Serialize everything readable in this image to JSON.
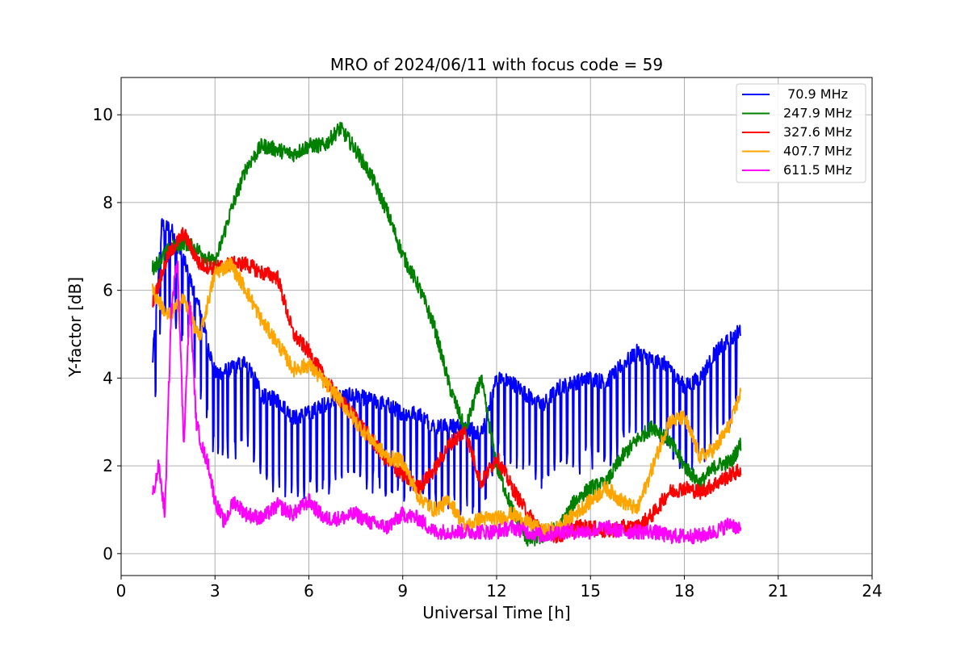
{
  "chart_data": {
    "type": "line",
    "title": "MRO of 2024/06/11 with focus code = 59",
    "xlabel": "Universal Time [h]",
    "ylabel": "Y-factor [dB]",
    "xlim": [
      0,
      24
    ],
    "ylim": [
      -0.5,
      10.85
    ],
    "xticks": [
      0,
      3,
      6,
      9,
      12,
      15,
      18,
      21,
      24
    ],
    "yticks": [
      0,
      2,
      4,
      6,
      8,
      10
    ],
    "grid": true,
    "legend": "top-right",
    "series": [
      {
        "name": " 70.9 MHz",
        "color": "#0000ff",
        "x": [
          1.0,
          1.3,
          1.6,
          2.0,
          2.5,
          3.0,
          3.5,
          4.0,
          4.5,
          5.0,
          5.5,
          6.0,
          6.5,
          7.0,
          7.5,
          8.0,
          8.5,
          9.0,
          9.5,
          10.0,
          10.5,
          11.0,
          11.5,
          12.0,
          12.5,
          13.0,
          13.5,
          14.0,
          14.5,
          15.0,
          15.5,
          16.0,
          16.5,
          17.0,
          17.5,
          18.0,
          18.5,
          19.0,
          19.5,
          19.8
        ],
        "y": [
          4.3,
          7.5,
          7.4,
          6.7,
          5.6,
          4.1,
          4.2,
          4.4,
          3.6,
          3.5,
          3.1,
          3.2,
          3.4,
          3.6,
          3.6,
          3.5,
          3.4,
          3.2,
          3.2,
          2.9,
          2.9,
          2.9,
          2.7,
          4.0,
          3.9,
          3.6,
          3.4,
          3.8,
          3.9,
          4.0,
          3.9,
          4.3,
          4.6,
          4.4,
          4.3,
          3.8,
          4.0,
          4.6,
          4.9,
          5.1
        ],
        "spikes": [
          1.1,
          1.25,
          1.4,
          1.55,
          1.75,
          1.95,
          2.15,
          2.35,
          2.55,
          2.75,
          2.95,
          3.1,
          3.25,
          3.4,
          3.65,
          3.85,
          4.05,
          4.25,
          4.45,
          4.65,
          4.85,
          5.05,
          5.25,
          5.45,
          5.65,
          5.85,
          6.05,
          6.25,
          6.45,
          6.65,
          6.85,
          7.05,
          7.25,
          7.45,
          7.65,
          7.85,
          8.05,
          8.25,
          8.45,
          8.65,
          8.85,
          9.05,
          9.25,
          9.45,
          9.65,
          9.85,
          10.05,
          10.25,
          10.45,
          10.65,
          10.85,
          11.05,
          11.25,
          11.45,
          11.65,
          11.85,
          12.05,
          12.25,
          12.45,
          12.65,
          12.85,
          13.05,
          13.25,
          13.45,
          13.65,
          13.85,
          14.05,
          14.25,
          14.45,
          14.65,
          14.85,
          15.05,
          15.25,
          15.45,
          15.65,
          15.85,
          16.05,
          16.25,
          16.45,
          16.65,
          16.85,
          17.05,
          17.25,
          17.45,
          17.65,
          17.85,
          18.05,
          18.25,
          18.45,
          18.65,
          18.85,
          19.05,
          19.25,
          19.45,
          19.65
        ]
      },
      {
        "name": "247.9 MHz",
        "color": "#008000",
        "x": [
          1.0,
          1.5,
          2.0,
          2.5,
          3.0,
          3.5,
          4.0,
          4.5,
          5.0,
          5.5,
          6.0,
          6.5,
          7.0,
          7.5,
          8.0,
          8.5,
          9.0,
          9.5,
          10.0,
          10.5,
          11.0,
          11.5,
          12.0,
          12.5,
          13.0,
          13.5,
          14.0,
          14.5,
          15.0,
          15.5,
          16.0,
          16.5,
          17.0,
          17.5,
          18.0,
          18.5,
          19.0,
          19.5,
          19.8
        ],
        "y": [
          6.5,
          6.9,
          7.1,
          6.9,
          6.6,
          7.8,
          8.8,
          9.3,
          9.2,
          9.1,
          9.3,
          9.3,
          9.7,
          9.2,
          8.6,
          7.8,
          6.8,
          6.1,
          5.2,
          3.8,
          2.8,
          4.0,
          2.0,
          1.0,
          0.3,
          0.4,
          0.6,
          1.2,
          1.5,
          1.6,
          2.2,
          2.6,
          2.9,
          2.6,
          2.0,
          1.6,
          2.0,
          2.1,
          2.5
        ]
      },
      {
        "name": "327.6 MHz",
        "color": "#ff0000",
        "x": [
          1.0,
          1.5,
          2.0,
          2.5,
          3.0,
          3.5,
          4.0,
          4.5,
          5.0,
          5.5,
          6.0,
          6.5,
          7.0,
          7.5,
          8.0,
          8.5,
          9.0,
          9.5,
          10.0,
          10.5,
          11.0,
          11.5,
          12.0,
          12.5,
          13.0,
          13.5,
          14.0,
          14.5,
          15.0,
          15.5,
          16.0,
          16.5,
          17.0,
          17.5,
          18.0,
          18.5,
          19.0,
          19.5,
          19.8
        ],
        "y": [
          5.7,
          6.8,
          7.3,
          6.6,
          6.5,
          6.6,
          6.6,
          6.4,
          6.3,
          5.0,
          4.6,
          4.0,
          3.5,
          3.1,
          2.6,
          2.1,
          1.8,
          1.5,
          1.9,
          2.5,
          2.8,
          1.6,
          2.2,
          1.5,
          0.9,
          0.5,
          0.4,
          0.6,
          0.6,
          0.5,
          0.6,
          0.6,
          0.9,
          1.4,
          1.5,
          1.4,
          1.6,
          1.8,
          1.9
        ]
      },
      {
        "name": "407.7 MHz",
        "color": "#ffa500",
        "x": [
          1.0,
          1.5,
          2.0,
          2.5,
          3.0,
          3.5,
          4.0,
          4.5,
          5.0,
          5.5,
          6.0,
          6.5,
          7.0,
          7.5,
          8.0,
          8.5,
          9.0,
          9.5,
          10.0,
          10.5,
          11.0,
          11.5,
          12.0,
          12.5,
          13.0,
          13.5,
          14.0,
          14.5,
          15.0,
          15.5,
          16.0,
          16.5,
          17.0,
          17.5,
          18.0,
          18.5,
          19.0,
          19.5,
          19.8
        ],
        "y": [
          6.0,
          5.4,
          5.8,
          4.9,
          6.4,
          6.6,
          6.0,
          5.3,
          4.8,
          4.2,
          4.3,
          3.9,
          3.5,
          3.0,
          2.6,
          2.2,
          2.1,
          1.3,
          1.0,
          1.2,
          0.6,
          0.8,
          0.8,
          0.9,
          0.7,
          0.5,
          0.6,
          0.9,
          1.2,
          1.5,
          1.2,
          1.0,
          2.0,
          3.0,
          3.1,
          2.2,
          2.4,
          3.0,
          3.7
        ]
      },
      {
        "name": "611.5 MHz",
        "color": "#ff00ff",
        "x": [
          1.0,
          1.2,
          1.4,
          1.6,
          1.8,
          2.0,
          2.2,
          2.4,
          2.6,
          2.8,
          3.0,
          3.3,
          3.6,
          4.0,
          4.5,
          5.0,
          5.5,
          6.0,
          6.5,
          7.0,
          7.5,
          8.0,
          8.5,
          9.0,
          9.5,
          10.0,
          10.5,
          11.0,
          11.5,
          12.0,
          12.5,
          13.0,
          13.5,
          14.0,
          14.5,
          15.0,
          15.5,
          16.0,
          16.5,
          17.0,
          17.5,
          18.0,
          18.5,
          19.0,
          19.5,
          19.8
        ],
        "y": [
          1.3,
          2.0,
          0.9,
          5.5,
          6.8,
          2.5,
          5.8,
          3.0,
          2.4,
          2.0,
          1.2,
          0.7,
          1.2,
          0.9,
          0.8,
          1.1,
          0.9,
          1.2,
          0.8,
          0.8,
          0.9,
          0.7,
          0.6,
          0.9,
          0.8,
          0.5,
          0.5,
          0.5,
          0.5,
          0.5,
          0.6,
          0.5,
          0.4,
          0.5,
          0.5,
          0.5,
          0.6,
          0.5,
          0.5,
          0.5,
          0.4,
          0.4,
          0.4,
          0.5,
          0.7,
          0.5
        ]
      }
    ]
  }
}
